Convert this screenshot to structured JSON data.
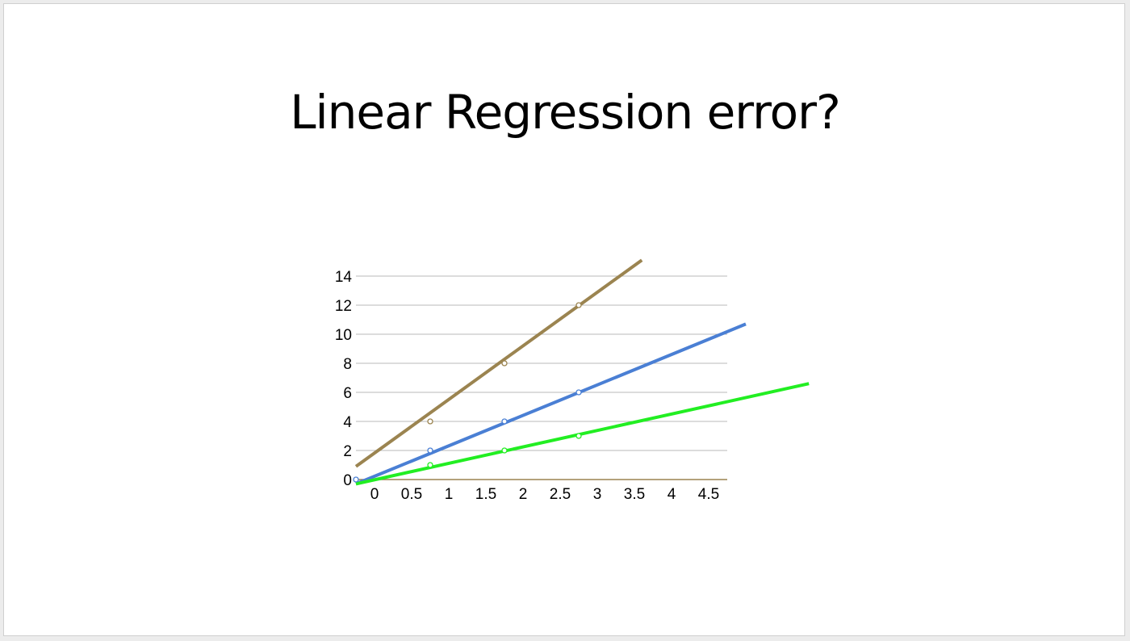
{
  "slide": {
    "title": "Linear Regression error?"
  },
  "chart_data": {
    "type": "scatter",
    "title": "",
    "xlabel": "",
    "ylabel": "",
    "xlim": [
      -0.25,
      4.75
    ],
    "ylim": [
      0,
      14
    ],
    "x_ticks": [
      "0",
      "0.5",
      "1",
      "1.5",
      "2",
      "2.5",
      "3",
      "3.5",
      "4",
      "4.5"
    ],
    "x_tick_values": [
      0,
      0.5,
      1,
      1.5,
      2,
      2.5,
      3,
      3.5,
      4,
      4.5
    ],
    "y_ticks": [
      "0",
      "2",
      "4",
      "6",
      "8",
      "10",
      "12",
      "14"
    ],
    "y_tick_values": [
      0,
      2,
      4,
      6,
      8,
      10,
      12,
      14
    ],
    "grid": "horizontal",
    "series": [
      {
        "color": "#9b8450",
        "points": [
          [
            0.75,
            4
          ],
          [
            1.75,
            8
          ],
          [
            2.75,
            12
          ]
        ],
        "fit_line": [
          [
            -0.25,
            0.9
          ],
          [
            3.6,
            15.1
          ]
        ]
      },
      {
        "color": "#4a7fd4",
        "points": [
          [
            -0.25,
            0
          ],
          [
            0.75,
            2
          ],
          [
            1.75,
            4
          ],
          [
            2.75,
            6
          ]
        ],
        "fit_line": [
          [
            -0.25,
            -0.3
          ],
          [
            5.0,
            10.7
          ]
        ]
      },
      {
        "color": "#22ee22",
        "points": [
          [
            0.75,
            1
          ],
          [
            1.75,
            2
          ],
          [
            2.75,
            3
          ]
        ],
        "fit_line": [
          [
            -0.25,
            -0.3
          ],
          [
            5.85,
            6.6
          ]
        ]
      }
    ]
  }
}
